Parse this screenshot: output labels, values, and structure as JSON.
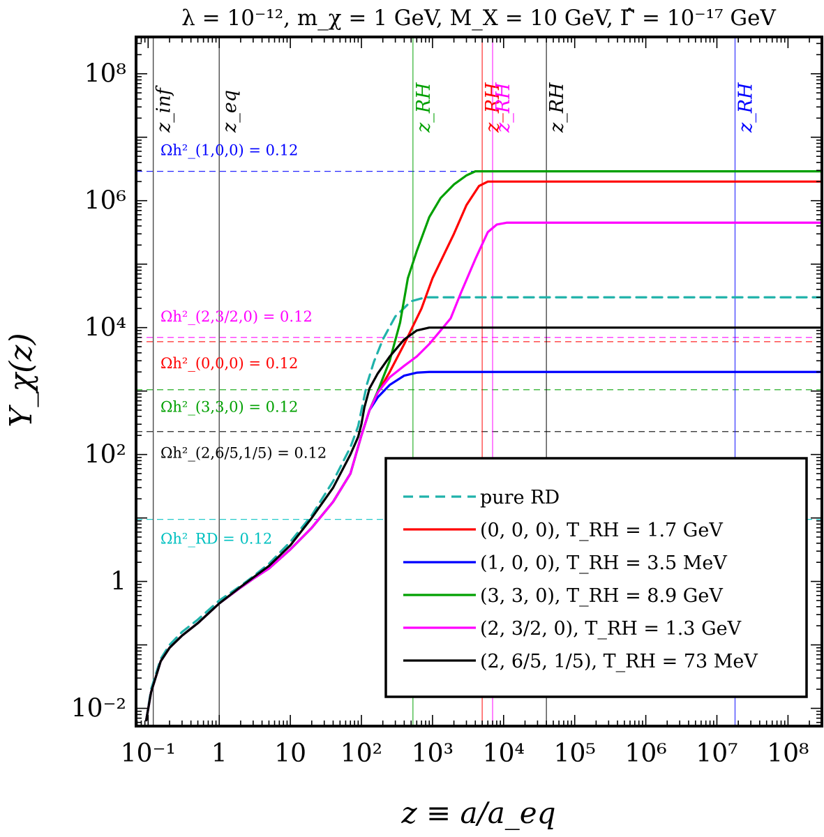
{
  "chart_data": {
    "type": "line",
    "title": "λ = 10⁻¹², m_χ = 1 GeV, M_X = 10 GeV, Γ̂ = 10⁻¹⁷ GeV",
    "xlabel": "z ≡ a/a_eq",
    "ylabel": "Y_χ(z)",
    "x_scale": "log",
    "y_scale": "log",
    "xlim": [
      0.0676,
      300000000
    ],
    "ylim": [
      0.00525,
      380000000
    ],
    "x_ticks": [
      {
        "value": 0.1,
        "label": "10⁻¹"
      },
      {
        "value": 1,
        "label": "1"
      },
      {
        "value": 10,
        "label": "10"
      },
      {
        "value": 100,
        "label": "10²"
      },
      {
        "value": 1000,
        "label": "10³"
      },
      {
        "value": 10000,
        "label": "10⁴"
      },
      {
        "value": 100000,
        "label": "10⁵"
      },
      {
        "value": 1000000,
        "label": "10⁶"
      },
      {
        "value": 10000000,
        "label": "10⁷"
      },
      {
        "value": 100000000,
        "label": "10⁸"
      }
    ],
    "y_ticks": [
      {
        "value": 0.01,
        "label": "10⁻²"
      },
      {
        "value": 1,
        "label": "1"
      },
      {
        "value": 100,
        "label": "10²"
      },
      {
        "value": 10000,
        "label": "10⁴"
      },
      {
        "value": 1000000,
        "label": "10⁶"
      },
      {
        "value": 100000000,
        "label": "10⁸"
      }
    ],
    "grid": false,
    "legend_position": "bottom-right",
    "series": [
      {
        "name": "pure RD",
        "color": "#20b2aa",
        "dash": true,
        "points": [
          [
            0.094,
            0.0065
          ],
          [
            0.11,
            0.02
          ],
          [
            0.15,
            0.06
          ],
          [
            0.2,
            0.1
          ],
          [
            0.3,
            0.16
          ],
          [
            0.5,
            0.25
          ],
          [
            1,
            0.5
          ],
          [
            2,
            0.85
          ],
          [
            3,
            1.2
          ],
          [
            5,
            1.9
          ],
          [
            10,
            4.2
          ],
          [
            20,
            11
          ],
          [
            40,
            38
          ],
          [
            70,
            130
          ],
          [
            90,
            280
          ],
          [
            100,
            500
          ],
          [
            120,
            1300
          ],
          [
            150,
            2900
          ],
          [
            200,
            6500
          ],
          [
            300,
            15000
          ],
          [
            500,
            26000
          ],
          [
            800,
            30000
          ],
          [
            1000,
            30000
          ],
          [
            300000000,
            30000
          ]
        ]
      },
      {
        "name": "(0, 0, 0),   T_RH = 1.7 GeV",
        "color": "#ff0000",
        "dash": false,
        "points": [
          [
            0.094,
            0.0065
          ],
          [
            0.11,
            0.018
          ],
          [
            0.15,
            0.055
          ],
          [
            0.2,
            0.09
          ],
          [
            0.3,
            0.14
          ],
          [
            0.5,
            0.22
          ],
          [
            1,
            0.45
          ],
          [
            2,
            0.8
          ],
          [
            3,
            1.1
          ],
          [
            5,
            1.6
          ],
          [
            10,
            3.2
          ],
          [
            20,
            7
          ],
          [
            40,
            18
          ],
          [
            70,
            50
          ],
          [
            100,
            200
          ],
          [
            130,
            500
          ],
          [
            170,
            950
          ],
          [
            250,
            2000
          ],
          [
            400,
            5500
          ],
          [
            700,
            20000
          ],
          [
            1000,
            60000
          ],
          [
            2000,
            300000
          ],
          [
            3000,
            850000
          ],
          [
            4500,
            1700000
          ],
          [
            6000,
            2000000
          ],
          [
            300000000,
            2000000
          ]
        ]
      },
      {
        "name": "(1, 0, 0),   T_RH = 3.5 MeV",
        "color": "#0000ff",
        "dash": false,
        "points": [
          [
            0.094,
            0.0065
          ],
          [
            0.11,
            0.018
          ],
          [
            0.15,
            0.055
          ],
          [
            0.2,
            0.09
          ],
          [
            0.3,
            0.14
          ],
          [
            0.5,
            0.22
          ],
          [
            1,
            0.45
          ],
          [
            2,
            0.8
          ],
          [
            3,
            1.1
          ],
          [
            5,
            1.6
          ],
          [
            10,
            3.2
          ],
          [
            20,
            7
          ],
          [
            40,
            18
          ],
          [
            70,
            50
          ],
          [
            100,
            200
          ],
          [
            130,
            500
          ],
          [
            170,
            800
          ],
          [
            250,
            1250
          ],
          [
            400,
            1750
          ],
          [
            600,
            1950
          ],
          [
            900,
            2000
          ],
          [
            300000000,
            2000
          ]
        ]
      },
      {
        "name": "(3, 3, 0),   T_RH = 8.9 GeV",
        "color": "#00a000",
        "dash": false,
        "points": [
          [
            0.094,
            0.0065
          ],
          [
            0.11,
            0.018
          ],
          [
            0.15,
            0.055
          ],
          [
            0.2,
            0.09
          ],
          [
            0.3,
            0.14
          ],
          [
            0.5,
            0.22
          ],
          [
            1,
            0.45
          ],
          [
            2,
            0.8
          ],
          [
            3,
            1.1
          ],
          [
            5,
            1.6
          ],
          [
            10,
            3.2
          ],
          [
            20,
            7
          ],
          [
            40,
            18
          ],
          [
            70,
            50
          ],
          [
            100,
            200
          ],
          [
            130,
            500
          ],
          [
            170,
            1000
          ],
          [
            250,
            3000
          ],
          [
            350,
            12000
          ],
          [
            450,
            60000
          ],
          [
            600,
            160000
          ],
          [
            900,
            550000
          ],
          [
            1300,
            1100000
          ],
          [
            2000,
            1800000
          ],
          [
            3000,
            2500000
          ],
          [
            4000,
            2900000
          ],
          [
            300000000,
            2900000
          ]
        ]
      },
      {
        "name": "(2, 3/2, 0),   T_RH = 1.3 GeV",
        "color": "#ff00ff",
        "dash": false,
        "points": [
          [
            0.094,
            0.0065
          ],
          [
            0.11,
            0.018
          ],
          [
            0.15,
            0.055
          ],
          [
            0.2,
            0.09
          ],
          [
            0.3,
            0.14
          ],
          [
            0.5,
            0.22
          ],
          [
            1,
            0.45
          ],
          [
            2,
            0.8
          ],
          [
            3,
            1.1
          ],
          [
            5,
            1.6
          ],
          [
            10,
            3.2
          ],
          [
            20,
            7
          ],
          [
            40,
            18
          ],
          [
            70,
            50
          ],
          [
            100,
            200
          ],
          [
            130,
            500
          ],
          [
            170,
            950
          ],
          [
            250,
            1650
          ],
          [
            400,
            2500
          ],
          [
            600,
            3500
          ],
          [
            900,
            5500
          ],
          [
            1300,
            9000
          ],
          [
            1800,
            14000
          ],
          [
            2500,
            35000
          ],
          [
            4000,
            120000
          ],
          [
            6000,
            320000
          ],
          [
            8000,
            420000
          ],
          [
            11000,
            450000
          ],
          [
            300000000,
            450000
          ]
        ]
      },
      {
        "name": "(2, 6/5, 1/5),   T_RH = 73 MeV",
        "color": "#000000",
        "dash": false,
        "points": [
          [
            0.094,
            0.0065
          ],
          [
            0.11,
            0.018
          ],
          [
            0.15,
            0.055
          ],
          [
            0.2,
            0.09
          ],
          [
            0.3,
            0.14
          ],
          [
            0.5,
            0.22
          ],
          [
            1,
            0.45
          ],
          [
            2,
            0.82
          ],
          [
            3,
            1.15
          ],
          [
            5,
            1.75
          ],
          [
            10,
            3.7
          ],
          [
            20,
            10
          ],
          [
            40,
            30
          ],
          [
            70,
            100
          ],
          [
            90,
            190
          ],
          [
            100,
            300
          ],
          [
            110,
            550
          ],
          [
            130,
            1100
          ],
          [
            170,
            1900
          ],
          [
            250,
            3500
          ],
          [
            400,
            6500
          ],
          [
            600,
            9000
          ],
          [
            900,
            10000
          ],
          [
            300000000,
            10000
          ]
        ]
      }
    ],
    "horizontal_lines": [
      {
        "y": 2900000,
        "color": "#0000ff",
        "label": "Ωh²_(1,0,0) = 0.12"
      },
      {
        "y": 7000,
        "color": "#ff00ff",
        "label": "Ωh²_(2,3/2,0) = 0.12"
      },
      {
        "y": 6000,
        "color": "#ff0000",
        "label": "Ωh²_(0,0,0) = 0.12"
      },
      {
        "y": 1050,
        "color": "#00a000",
        "label": "Ωh²_(3,3,0) = 0.12"
      },
      {
        "y": 230,
        "color": "#000000",
        "label": "Ωh²_(2,6/5,1/5) = 0.12"
      },
      {
        "y": 9.5,
        "color": "#00c0c0",
        "label": "Ωh²_RD = 0.12"
      }
    ],
    "vertical_lines": [
      {
        "x": 0.118,
        "color": "#000000",
        "label": "z_inf"
      },
      {
        "x": 1,
        "color": "#000000",
        "label": "z_eq"
      },
      {
        "x": 530,
        "color": "#00a000",
        "label": "z_RH"
      },
      {
        "x": 5000,
        "color": "#ff0000",
        "label": "z_RH"
      },
      {
        "x": 7000,
        "color": "#ff00ff",
        "label": "z_RH"
      },
      {
        "x": 40000,
        "color": "#000000",
        "label": "z_RH"
      },
      {
        "x": 18000000,
        "color": "#0000ff",
        "label": "z_RH"
      }
    ]
  }
}
